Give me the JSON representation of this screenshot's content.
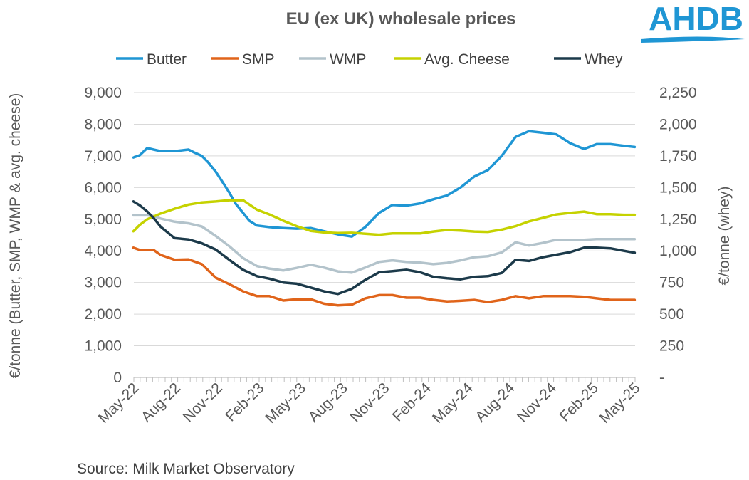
{
  "chart_data": {
    "type": "line",
    "title": "EU (ex UK) wholesale prices",
    "source": "Source: Milk Market Observatory",
    "logo_text": "AHDB",
    "ylabel_left": "€/tonne (Butter, SMP, WMP & avg. cheese)",
    "ylabel_right": "€/tonne (whey)",
    "ylim_left": [
      0,
      9000
    ],
    "ylim_right": [
      0,
      2250
    ],
    "yticks_left": [
      "0",
      "1,000",
      "2,000",
      "3,000",
      "4,000",
      "5,000",
      "6,000",
      "7,000",
      "8,000",
      "9,000"
    ],
    "yticks_right": [
      "-",
      "250",
      "500",
      "750",
      "1,000",
      "1,250",
      "1,500",
      "1,750",
      "2,000",
      "2,250"
    ],
    "x_tick_labels": [
      "May-22",
      "Aug-22",
      "Nov-22",
      "Feb-23",
      "May-23",
      "Aug-23",
      "Nov-23",
      "Feb-24",
      "May-24",
      "Aug-24",
      "Nov-24",
      "Feb-25",
      "May-25"
    ],
    "x_weeks": [
      "2022-05-02",
      "2022-05-16",
      "2022-05-30",
      "2022-06-13",
      "2022-06-27",
      "2022-07-11",
      "2022-07-25",
      "2022-08-08",
      "2022-08-22",
      "2022-09-05",
      "2022-09-19",
      "2022-10-03",
      "2022-10-17",
      "2022-10-31",
      "2022-11-14",
      "2022-11-28",
      "2022-12-12",
      "2022-12-26",
      "2023-01-09",
      "2023-01-23",
      "2023-02-06",
      "2023-02-20",
      "2023-03-06",
      "2023-03-20",
      "2023-04-03",
      "2023-04-17",
      "2023-05-01",
      "2023-05-15",
      "2023-05-29",
      "2023-06-12",
      "2023-06-26",
      "2023-07-10",
      "2023-07-24",
      "2023-08-07",
      "2023-08-21",
      "2023-09-04",
      "2023-09-18",
      "2023-10-02",
      "2023-10-16",
      "2023-10-30",
      "2023-11-13",
      "2023-11-27",
      "2023-12-11",
      "2023-12-25",
      "2024-01-08",
      "2024-01-22",
      "2024-02-05",
      "2024-02-19",
      "2024-03-04",
      "2024-03-18",
      "2024-04-01",
      "2024-04-15",
      "2024-04-29",
      "2024-05-13",
      "2024-05-27",
      "2024-06-10",
      "2024-06-24",
      "2024-07-08",
      "2024-07-22",
      "2024-08-05",
      "2024-08-19",
      "2024-09-02",
      "2024-09-16",
      "2024-09-30",
      "2024-10-14",
      "2024-10-28",
      "2024-11-11",
      "2024-11-25",
      "2024-12-09",
      "2024-12-23",
      "2025-01-06",
      "2025-01-20",
      "2025-02-03",
      "2025-02-17",
      "2025-03-03",
      "2025-03-17",
      "2025-03-31",
      "2025-04-14",
      "2025-04-28",
      "2025-05-12",
      "2025-05-26"
    ],
    "series": [
      {
        "name": "Butter",
        "color": "#1f96d4",
        "axis": "left",
        "points": [
          [
            "2022-05-01",
            6950
          ],
          [
            "2022-05-15",
            7020
          ],
          [
            "2022-06-01",
            7250
          ],
          [
            "2022-06-15",
            7200
          ],
          [
            "2022-07-01",
            7150
          ],
          [
            "2022-07-15",
            7150
          ],
          [
            "2022-08-01",
            7150
          ],
          [
            "2022-08-15",
            7170
          ],
          [
            "2022-09-01",
            7200
          ],
          [
            "2022-09-15",
            7100
          ],
          [
            "2022-10-01",
            7000
          ],
          [
            "2022-10-15",
            6800
          ],
          [
            "2022-11-01",
            6500
          ],
          [
            "2022-11-15",
            6200
          ],
          [
            "2022-12-01",
            5850
          ],
          [
            "2022-12-15",
            5500
          ],
          [
            "2023-01-01",
            5200
          ],
          [
            "2023-01-15",
            4950
          ],
          [
            "2023-02-01",
            4800
          ],
          [
            "2023-03-01",
            4750
          ],
          [
            "2023-04-01",
            4720
          ],
          [
            "2023-05-01",
            4700
          ],
          [
            "2023-06-01",
            4720
          ],
          [
            "2023-07-01",
            4620
          ],
          [
            "2023-08-01",
            4520
          ],
          [
            "2023-09-01",
            4450
          ],
          [
            "2023-10-01",
            4750
          ],
          [
            "2023-11-01",
            5200
          ],
          [
            "2023-12-01",
            5450
          ],
          [
            "2024-01-01",
            5430
          ],
          [
            "2024-02-01",
            5500
          ],
          [
            "2024-03-01",
            5630
          ],
          [
            "2024-04-01",
            5750
          ],
          [
            "2024-05-01",
            6000
          ],
          [
            "2024-06-01",
            6350
          ],
          [
            "2024-07-01",
            6550
          ],
          [
            "2024-08-01",
            7000
          ],
          [
            "2024-09-01",
            7600
          ],
          [
            "2024-10-01",
            7780
          ],
          [
            "2024-11-01",
            7730
          ],
          [
            "2024-12-01",
            7680
          ],
          [
            "2025-01-01",
            7400
          ],
          [
            "2025-02-01",
            7220
          ],
          [
            "2025-03-01",
            7370
          ],
          [
            "2025-04-01",
            7370
          ],
          [
            "2025-05-01",
            7320
          ],
          [
            "2025-05-25",
            7280
          ]
        ]
      },
      {
        "name": "SMP",
        "color": "#e0641a",
        "axis": "left",
        "points": [
          [
            "2022-05-01",
            4100
          ],
          [
            "2022-05-15",
            4030
          ],
          [
            "2022-06-01",
            4030
          ],
          [
            "2022-06-15",
            4030
          ],
          [
            "2022-07-01",
            3870
          ],
          [
            "2022-08-01",
            3720
          ],
          [
            "2022-09-01",
            3730
          ],
          [
            "2022-10-01",
            3580
          ],
          [
            "2022-11-01",
            3150
          ],
          [
            "2022-12-01",
            2950
          ],
          [
            "2023-01-01",
            2720
          ],
          [
            "2023-02-01",
            2570
          ],
          [
            "2023-03-01",
            2570
          ],
          [
            "2023-04-01",
            2430
          ],
          [
            "2023-05-01",
            2470
          ],
          [
            "2023-06-01",
            2470
          ],
          [
            "2023-07-01",
            2330
          ],
          [
            "2023-08-01",
            2280
          ],
          [
            "2023-09-01",
            2300
          ],
          [
            "2023-10-01",
            2500
          ],
          [
            "2023-11-01",
            2600
          ],
          [
            "2023-12-01",
            2600
          ],
          [
            "2024-01-01",
            2520
          ],
          [
            "2024-02-01",
            2520
          ],
          [
            "2024-03-01",
            2450
          ],
          [
            "2024-04-01",
            2400
          ],
          [
            "2024-05-01",
            2420
          ],
          [
            "2024-06-01",
            2450
          ],
          [
            "2024-07-01",
            2380
          ],
          [
            "2024-08-01",
            2450
          ],
          [
            "2024-09-01",
            2570
          ],
          [
            "2024-10-01",
            2500
          ],
          [
            "2024-11-01",
            2570
          ],
          [
            "2024-12-01",
            2570
          ],
          [
            "2025-01-01",
            2570
          ],
          [
            "2025-02-01",
            2550
          ],
          [
            "2025-03-01",
            2500
          ],
          [
            "2025-04-01",
            2450
          ],
          [
            "2025-05-01",
            2450
          ],
          [
            "2025-05-25",
            2450
          ]
        ]
      },
      {
        "name": "WMP",
        "color": "#b3c3cb",
        "axis": "left",
        "points": [
          [
            "2022-05-01",
            5120
          ],
          [
            "2022-05-15",
            5120
          ],
          [
            "2022-06-01",
            5120
          ],
          [
            "2022-06-15",
            5100
          ],
          [
            "2022-07-01",
            5020
          ],
          [
            "2022-08-01",
            4920
          ],
          [
            "2022-09-01",
            4870
          ],
          [
            "2022-10-01",
            4770
          ],
          [
            "2022-11-01",
            4470
          ],
          [
            "2022-12-01",
            4150
          ],
          [
            "2023-01-01",
            3770
          ],
          [
            "2023-02-01",
            3520
          ],
          [
            "2023-03-01",
            3440
          ],
          [
            "2023-04-01",
            3380
          ],
          [
            "2023-05-01",
            3460
          ],
          [
            "2023-06-01",
            3560
          ],
          [
            "2023-07-01",
            3470
          ],
          [
            "2023-08-01",
            3350
          ],
          [
            "2023-09-01",
            3310
          ],
          [
            "2023-10-01",
            3470
          ],
          [
            "2023-11-01",
            3650
          ],
          [
            "2023-12-01",
            3700
          ],
          [
            "2024-01-01",
            3650
          ],
          [
            "2024-02-01",
            3630
          ],
          [
            "2024-03-01",
            3580
          ],
          [
            "2024-04-01",
            3620
          ],
          [
            "2024-05-01",
            3700
          ],
          [
            "2024-06-01",
            3800
          ],
          [
            "2024-07-01",
            3830
          ],
          [
            "2024-08-01",
            3950
          ],
          [
            "2024-09-01",
            4270
          ],
          [
            "2024-10-01",
            4170
          ],
          [
            "2024-11-01",
            4250
          ],
          [
            "2024-12-01",
            4350
          ],
          [
            "2025-01-01",
            4350
          ],
          [
            "2025-02-01",
            4350
          ],
          [
            "2025-03-01",
            4370
          ],
          [
            "2025-04-01",
            4370
          ],
          [
            "2025-05-01",
            4370
          ],
          [
            "2025-05-25",
            4370
          ]
        ]
      },
      {
        "name": "Avg. Cheese",
        "color": "#c5d200",
        "axis": "left",
        "points": [
          [
            "2022-05-01",
            4620
          ],
          [
            "2022-05-15",
            4820
          ],
          [
            "2022-06-01",
            5000
          ],
          [
            "2022-07-01",
            5180
          ],
          [
            "2022-08-01",
            5330
          ],
          [
            "2022-09-01",
            5460
          ],
          [
            "2022-10-01",
            5530
          ],
          [
            "2022-11-01",
            5560
          ],
          [
            "2022-12-01",
            5600
          ],
          [
            "2023-01-01",
            5600
          ],
          [
            "2023-02-01",
            5300
          ],
          [
            "2023-03-01",
            5150
          ],
          [
            "2023-04-01",
            4950
          ],
          [
            "2023-05-01",
            4780
          ],
          [
            "2023-06-01",
            4630
          ],
          [
            "2023-07-01",
            4580
          ],
          [
            "2023-08-01",
            4560
          ],
          [
            "2023-09-01",
            4570
          ],
          [
            "2023-10-01",
            4540
          ],
          [
            "2023-11-01",
            4510
          ],
          [
            "2023-12-01",
            4550
          ],
          [
            "2024-01-01",
            4550
          ],
          [
            "2024-02-01",
            4550
          ],
          [
            "2024-03-01",
            4610
          ],
          [
            "2024-04-01",
            4660
          ],
          [
            "2024-05-01",
            4640
          ],
          [
            "2024-06-01",
            4610
          ],
          [
            "2024-07-01",
            4600
          ],
          [
            "2024-08-01",
            4670
          ],
          [
            "2024-09-01",
            4780
          ],
          [
            "2024-10-01",
            4930
          ],
          [
            "2024-11-01",
            5040
          ],
          [
            "2024-12-01",
            5150
          ],
          [
            "2025-01-01",
            5200
          ],
          [
            "2025-02-01",
            5240
          ],
          [
            "2025-03-01",
            5160
          ],
          [
            "2025-04-01",
            5160
          ],
          [
            "2025-05-01",
            5140
          ],
          [
            "2025-05-25",
            5140
          ]
        ]
      },
      {
        "name": "Whey",
        "color": "#1c3a4a",
        "axis": "right",
        "points": [
          [
            "2022-05-01",
            1390
          ],
          [
            "2022-05-15",
            1360
          ],
          [
            "2022-06-01",
            1310
          ],
          [
            "2022-06-15",
            1260
          ],
          [
            "2022-07-01",
            1190
          ],
          [
            "2022-07-15",
            1150
          ],
          [
            "2022-08-01",
            1100
          ],
          [
            "2022-09-01",
            1090
          ],
          [
            "2022-10-01",
            1060
          ],
          [
            "2022-11-01",
            1010
          ],
          [
            "2022-12-01",
            930
          ],
          [
            "2023-01-01",
            850
          ],
          [
            "2023-02-01",
            800
          ],
          [
            "2023-03-01",
            780
          ],
          [
            "2023-04-01",
            750
          ],
          [
            "2023-05-01",
            740
          ],
          [
            "2023-06-01",
            710
          ],
          [
            "2023-07-01",
            680
          ],
          [
            "2023-08-01",
            660
          ],
          [
            "2023-09-01",
            700
          ],
          [
            "2023-10-01",
            770
          ],
          [
            "2023-11-01",
            830
          ],
          [
            "2023-12-01",
            840
          ],
          [
            "2024-01-01",
            850
          ],
          [
            "2024-02-01",
            830
          ],
          [
            "2024-03-01",
            795
          ],
          [
            "2024-04-01",
            783
          ],
          [
            "2024-05-01",
            775
          ],
          [
            "2024-06-01",
            795
          ],
          [
            "2024-07-01",
            800
          ],
          [
            "2024-08-01",
            825
          ],
          [
            "2024-09-01",
            930
          ],
          [
            "2024-10-01",
            920
          ],
          [
            "2024-11-01",
            950
          ],
          [
            "2024-12-01",
            970
          ],
          [
            "2025-01-01",
            990
          ],
          [
            "2025-02-01",
            1025
          ],
          [
            "2025-03-01",
            1025
          ],
          [
            "2025-04-01",
            1020
          ],
          [
            "2025-05-01",
            1000
          ],
          [
            "2025-05-25",
            985
          ]
        ]
      }
    ]
  }
}
